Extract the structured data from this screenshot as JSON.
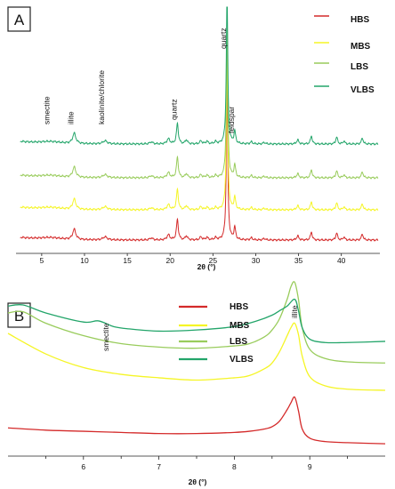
{
  "chart_data": [
    {
      "panel": "A",
      "type": "line",
      "xlabel": "2θ (°)",
      "ylabel": "",
      "xlim": [
        2,
        44.5
      ],
      "xticks": [
        5,
        10,
        15,
        20,
        25,
        30,
        35,
        40
      ],
      "grid": false,
      "legend_position": "top-right",
      "peaks": [
        {
          "x": 6.0,
          "height": 2,
          "width": 1.5
        },
        {
          "x": 8.8,
          "height": 10,
          "width": 0.22
        },
        {
          "x": 12.4,
          "height": 3,
          "width": 0.3
        },
        {
          "x": 17.8,
          "height": 2,
          "width": 0.2
        },
        {
          "x": 19.8,
          "height": 5,
          "width": 0.2
        },
        {
          "x": 20.85,
          "height": 20,
          "width": 0.13
        },
        {
          "x": 21.9,
          "height": 4,
          "width": 0.15
        },
        {
          "x": 23.6,
          "height": 3,
          "width": 0.15
        },
        {
          "x": 24.3,
          "height": 2.5,
          "width": 0.15
        },
        {
          "x": 25.3,
          "height": 2,
          "width": 0.15
        },
        {
          "x": 26.65,
          "height": 150,
          "width": 0.1
        },
        {
          "x": 27.55,
          "height": 12,
          "width": 0.12
        },
        {
          "x": 29.5,
          "height": 2,
          "width": 0.15
        },
        {
          "x": 31.0,
          "height": 1.5,
          "width": 0.15
        },
        {
          "x": 34.9,
          "height": 4,
          "width": 0.15
        },
        {
          "x": 36.5,
          "height": 8,
          "width": 0.12
        },
        {
          "x": 39.45,
          "height": 7,
          "width": 0.12
        },
        {
          "x": 40.3,
          "height": 3,
          "width": 0.12
        },
        {
          "x": 42.45,
          "height": 6,
          "width": 0.12
        }
      ],
      "series": [
        {
          "name": "HBS",
          "color": "#d42a2a",
          "offset": 0,
          "scale": 1.0
        },
        {
          "name": "MBS",
          "color": "#f5f526",
          "offset": 34,
          "scale": 1.0
        },
        {
          "name": "LBS",
          "color": "#99cc5c",
          "offset": 70,
          "scale": 1.0
        },
        {
          "name": "VLBS",
          "color": "#23a56a",
          "offset": 108,
          "scale": 1.0
        }
      ],
      "annotations": [
        {
          "text": "smectite",
          "x": 6.0
        },
        {
          "text": "illite",
          "x": 8.8
        },
        {
          "text": "kaolinite/chlorite",
          "x": 12.4
        },
        {
          "text": "quartz",
          "x": 20.85
        },
        {
          "text": "quartz",
          "x": 26.65
        },
        {
          "text": "feldspar",
          "x": 27.55
        }
      ],
      "panel_label": "A"
    },
    {
      "panel": "B",
      "type": "line",
      "xlabel": "2θ (°)",
      "ylabel": "",
      "xlim": [
        5.0,
        10.0
      ],
      "xticks": [
        6,
        7,
        8,
        9
      ],
      "grid": false,
      "legend_position": "top-center",
      "series": [
        {
          "name": "HBS",
          "color": "#d42a2a",
          "x": [
            5.0,
            5.5,
            6.0,
            6.5,
            7.0,
            7.5,
            8.0,
            8.2,
            8.4,
            8.5,
            8.6,
            8.7,
            8.75,
            8.8,
            8.85,
            8.9,
            9.0,
            9.2,
            9.5,
            10.0
          ],
          "y": [
            0.17,
            0.15,
            0.14,
            0.13,
            0.12,
            0.12,
            0.13,
            0.14,
            0.16,
            0.18,
            0.23,
            0.33,
            0.39,
            0.44,
            0.32,
            0.16,
            0.08,
            0.05,
            0.04,
            0.03
          ]
        },
        {
          "name": "MBS",
          "color": "#f5f526",
          "x": [
            5.0,
            5.5,
            6.0,
            6.5,
            7.0,
            7.5,
            8.0,
            8.2,
            8.4,
            8.5,
            8.6,
            8.7,
            8.75,
            8.8,
            8.85,
            8.9,
            9.0,
            9.2,
            9.5,
            10.0
          ],
          "y": [
            1.0,
            0.82,
            0.7,
            0.64,
            0.61,
            0.59,
            0.61,
            0.63,
            0.69,
            0.74,
            0.84,
            0.98,
            1.05,
            1.09,
            0.99,
            0.8,
            0.62,
            0.54,
            0.51,
            0.5
          ]
        },
        {
          "name": "LBS",
          "color": "#99cc5c",
          "x": [
            5.0,
            5.2,
            5.5,
            6.0,
            6.5,
            7.0,
            7.5,
            8.0,
            8.2,
            8.4,
            8.5,
            8.6,
            8.7,
            8.75,
            8.8,
            8.85,
            8.9,
            9.0,
            9.2,
            9.5,
            10.0
          ],
          "y": [
            1.18,
            1.19,
            1.09,
            0.98,
            0.91,
            0.88,
            0.87,
            0.89,
            0.91,
            0.97,
            1.03,
            1.13,
            1.3,
            1.41,
            1.45,
            1.3,
            1.05,
            0.86,
            0.78,
            0.75,
            0.74
          ]
        },
        {
          "name": "VLBS",
          "color": "#23a56a",
          "x": [
            5.0,
            5.2,
            5.5,
            6.0,
            6.2,
            6.4,
            6.6,
            7.0,
            7.5,
            8.0,
            8.3,
            8.5,
            8.6,
            8.7,
            8.8,
            8.85,
            8.9,
            9.0,
            9.2,
            9.5,
            10.0
          ],
          "y": [
            1.24,
            1.25,
            1.18,
            1.1,
            1.11,
            1.06,
            1.04,
            1.02,
            1.03,
            1.06,
            1.11,
            1.16,
            1.2,
            1.24,
            1.3,
            1.2,
            1.05,
            0.95,
            0.92,
            0.92,
            0.93
          ]
        }
      ],
      "annotations": [
        {
          "text": "smectite",
          "x": 6.3
        },
        {
          "text": "illite",
          "x": 8.8
        }
      ],
      "panel_label": "B"
    }
  ]
}
